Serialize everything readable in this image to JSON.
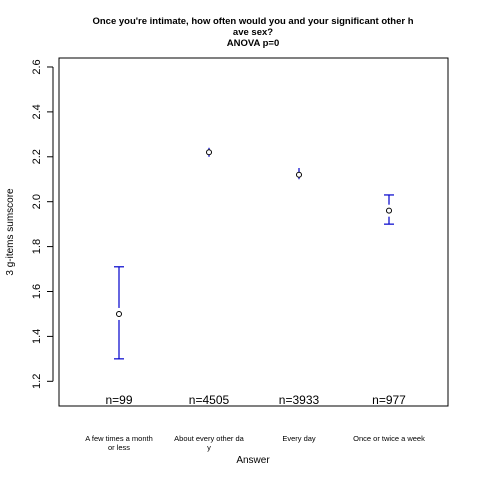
{
  "chart_data": {
    "type": "scatter",
    "title_lines": [
      "Once you're intimate, how often would you and your significant other h",
      "ave sex?",
      "ANOVA p=0"
    ],
    "xlabel": "Answer",
    "ylabel": "3 g-items sumscore",
    "ylim": [
      1.09,
      2.64
    ],
    "yticks": [
      1.2,
      1.4,
      1.6,
      1.8,
      2.0,
      2.2,
      2.4,
      2.6
    ],
    "ytick_labels": [
      "1.2",
      "1.4",
      "1.6",
      "1.8",
      "2.0",
      "2.2",
      "2.4",
      "2.6"
    ],
    "categories": [
      [
        "A few times a month",
        "or less"
      ],
      [
        "About every other da",
        "y"
      ],
      [
        "Every day"
      ],
      [
        "Once or twice a week"
      ]
    ],
    "means": [
      1.5,
      2.22,
      2.12,
      1.96
    ],
    "ci_lower": [
      1.3,
      2.2,
      2.1,
      1.9
    ],
    "ci_upper": [
      1.71,
      2.24,
      2.15,
      2.03
    ],
    "n_labels": [
      "n=99",
      "n=4505",
      "n=3933",
      "n=977"
    ],
    "colors": {
      "errorbar": "#0000cc",
      "point": "#000000",
      "axis": "#000000"
    },
    "grid": false,
    "legend": "none"
  }
}
